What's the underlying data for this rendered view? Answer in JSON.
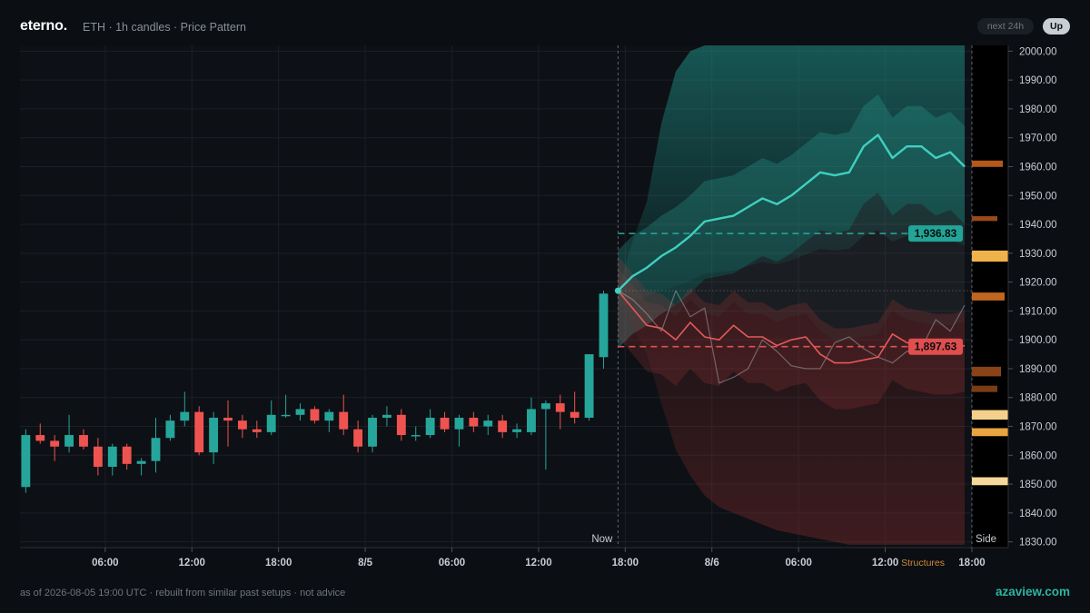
{
  "header": {
    "brand": "eterno.",
    "subtitle": "ETH · 1h candles · Price Pattern",
    "horizon_badge": "next 24h",
    "direction_badge": "Up"
  },
  "footer": {
    "note": "as of 2026-08-05 19:00 UTC · rebuilt from similar past setups · not advice",
    "site": "azaview.com"
  },
  "colors": {
    "up": "#26a69a",
    "down": "#ef5350",
    "background": "#0b0e12",
    "grid": "#1b2027",
    "bull_path": "#3fd0c0",
    "bear_path": "#e45a5a"
  },
  "chart_data": {
    "type": "candlestick",
    "title": "",
    "ylim": [
      1828,
      2002
    ],
    "yticks": [
      1830,
      1840,
      1850,
      1860,
      1870,
      1880,
      1890,
      1900,
      1910,
      1920,
      1930,
      1940,
      1950,
      1960,
      1970,
      1980,
      1990,
      2000
    ],
    "ytick_labels": [
      "1830.00",
      "1840.00",
      "1850.00",
      "1860.00",
      "1870.00",
      "1880.00",
      "1890.00",
      "1900.00",
      "1910.00",
      "1920.00",
      "1930.00",
      "1940.00",
      "1950.00",
      "1960.00",
      "1970.00",
      "1980.00",
      "1990.00",
      "2000.00"
    ],
    "xlim": [
      -0.4,
      65.5
    ],
    "x_ticks": [
      {
        "i": 5.5,
        "label": "06:00"
      },
      {
        "i": 11.5,
        "label": "12:00"
      },
      {
        "i": 17.5,
        "label": "18:00"
      },
      {
        "i": 23.5,
        "label": "8/5"
      },
      {
        "i": 29.5,
        "label": "06:00"
      },
      {
        "i": 35.5,
        "label": "12:00"
      },
      {
        "i": 41.5,
        "label": "18:00"
      },
      {
        "i": 47.5,
        "label": "8/6"
      },
      {
        "i": 53.5,
        "label": "06:00"
      },
      {
        "i": 59.5,
        "label": "12:00"
      },
      {
        "i": 65.5,
        "label": "18:00"
      }
    ],
    "candles": [
      {
        "o": 1849,
        "h": 1869,
        "l": 1847,
        "c": 1867
      },
      {
        "o": 1867,
        "h": 1871,
        "l": 1864,
        "c": 1865
      },
      {
        "o": 1865,
        "h": 1867,
        "l": 1858,
        "c": 1863
      },
      {
        "o": 1863,
        "h": 1874,
        "l": 1861,
        "c": 1867
      },
      {
        "o": 1867,
        "h": 1869,
        "l": 1862,
        "c": 1863
      },
      {
        "o": 1863,
        "h": 1866,
        "l": 1853,
        "c": 1856
      },
      {
        "o": 1856,
        "h": 1864,
        "l": 1853,
        "c": 1863
      },
      {
        "o": 1863,
        "h": 1864,
        "l": 1855,
        "c": 1857
      },
      {
        "o": 1857,
        "h": 1859,
        "l": 1853,
        "c": 1858
      },
      {
        "o": 1858,
        "h": 1873,
        "l": 1854,
        "c": 1866
      },
      {
        "o": 1866,
        "h": 1874,
        "l": 1865,
        "c": 1872
      },
      {
        "o": 1872,
        "h": 1882,
        "l": 1870,
        "c": 1875
      },
      {
        "o": 1875,
        "h": 1877,
        "l": 1860,
        "c": 1861
      },
      {
        "o": 1861,
        "h": 1875,
        "l": 1857,
        "c": 1873
      },
      {
        "o": 1873,
        "h": 1879,
        "l": 1863,
        "c": 1872
      },
      {
        "o": 1872,
        "h": 1874,
        "l": 1866,
        "c": 1869
      },
      {
        "o": 1869,
        "h": 1872,
        "l": 1866,
        "c": 1868
      },
      {
        "o": 1868,
        "h": 1879,
        "l": 1867,
        "c": 1874
      },
      {
        "o": 1874,
        "h": 1881,
        "l": 1873,
        "c": 1874
      },
      {
        "o": 1874,
        "h": 1878,
        "l": 1872,
        "c": 1876
      },
      {
        "o": 1876,
        "h": 1877,
        "l": 1871,
        "c": 1872
      },
      {
        "o": 1872,
        "h": 1876,
        "l": 1868,
        "c": 1875
      },
      {
        "o": 1875,
        "h": 1881,
        "l": 1867,
        "c": 1869
      },
      {
        "o": 1869,
        "h": 1872,
        "l": 1861,
        "c": 1863
      },
      {
        "o": 1863,
        "h": 1874,
        "l": 1861,
        "c": 1873
      },
      {
        "o": 1873,
        "h": 1877,
        "l": 1870,
        "c": 1874
      },
      {
        "o": 1874,
        "h": 1876,
        "l": 1865,
        "c": 1867
      },
      {
        "o": 1867,
        "h": 1870,
        "l": 1865,
        "c": 1867
      },
      {
        "o": 1867,
        "h": 1876,
        "l": 1866,
        "c": 1873
      },
      {
        "o": 1873,
        "h": 1875,
        "l": 1868,
        "c": 1869
      },
      {
        "o": 1869,
        "h": 1874,
        "l": 1863,
        "c": 1873
      },
      {
        "o": 1873,
        "h": 1875,
        "l": 1868,
        "c": 1870
      },
      {
        "o": 1870,
        "h": 1874,
        "l": 1867,
        "c": 1872
      },
      {
        "o": 1872,
        "h": 1874,
        "l": 1866,
        "c": 1868
      },
      {
        "o": 1868,
        "h": 1871,
        "l": 1866,
        "c": 1869
      },
      {
        "o": 1868,
        "h": 1880,
        "l": 1867,
        "c": 1876
      },
      {
        "o": 1876,
        "h": 1879,
        "l": 1855,
        "c": 1878
      },
      {
        "o": 1878,
        "h": 1881,
        "l": 1869,
        "c": 1875
      },
      {
        "o": 1875,
        "h": 1882,
        "l": 1871,
        "c": 1873
      },
      {
        "o": 1873,
        "h": 1895,
        "l": 1872,
        "c": 1895
      },
      {
        "o": 1894,
        "h": 1917,
        "l": 1890,
        "c": 1916
      }
    ],
    "now_index": 41,
    "now_label": "Now",
    "current_price": 1917,
    "levels": [
      {
        "value": 1936.83,
        "label": "1,936.83",
        "kind": "up"
      },
      {
        "value": 1897.63,
        "label": "1,897.63",
        "kind": "down"
      }
    ],
    "bull_path": [
      1917,
      1922,
      1925,
      1929,
      1932,
      1936,
      1941,
      1942,
      1943,
      1946,
      1949,
      1947,
      1950,
      1954,
      1958,
      1957,
      1958,
      1967,
      1971,
      1963,
      1967,
      1967,
      1963,
      1965,
      1960
    ],
    "bear_path": [
      1917,
      1911,
      1905,
      1904,
      1900,
      1906,
      1901,
      1900,
      1905,
      1901,
      1901,
      1898,
      1900,
      1901,
      1895,
      1892,
      1892,
      1893,
      1894,
      1902,
      1899,
      1898,
      1897,
      1897,
      1898
    ],
    "ghost_path": [
      1917,
      1914,
      1909,
      1903,
      1917,
      1908,
      1911,
      1885,
      1887,
      1890,
      1900,
      1896,
      1891,
      1890,
      1890,
      1899,
      1901,
      1897,
      1894,
      1892,
      1896,
      1897,
      1907,
      1903,
      1912
    ],
    "upper_band": [
      1917,
      1934,
      1948,
      1975,
      1993,
      2000,
      2002,
      2002,
      2002,
      2002,
      2002,
      2002,
      2002,
      2002,
      2002,
      2002,
      2002,
      2002,
      2002,
      2002,
      2002,
      2002,
      2002,
      2002,
      2002
    ],
    "lower_band": [
      1917,
      1905,
      1895,
      1878,
      1862,
      1853,
      1846,
      1842,
      1840,
      1838,
      1836,
      1834,
      1833,
      1832,
      1831,
      1830,
      1829,
      1829,
      1829,
      1829,
      1829,
      1829,
      1829,
      1829,
      1829
    ],
    "side_label": "Side",
    "structures_label": "Structures",
    "volume_profile": [
      {
        "y": 1961,
        "w": 0.85,
        "h": 4,
        "color": "#b4581c"
      },
      {
        "y": 1942,
        "w": 0.7,
        "h": 3,
        "color": "#9a4a18"
      },
      {
        "y": 1929,
        "w": 1.0,
        "h": 7,
        "color": "#f0b24a"
      },
      {
        "y": 1915,
        "w": 0.9,
        "h": 5,
        "color": "#c0661f"
      },
      {
        "y": 1889,
        "w": 0.8,
        "h": 6,
        "color": "#8a4318"
      },
      {
        "y": 1883,
        "w": 0.7,
        "h": 4,
        "color": "#7a3b15"
      },
      {
        "y": 1874,
        "w": 1.0,
        "h": 6,
        "color": "#f4d08a"
      },
      {
        "y": 1868,
        "w": 1.0,
        "h": 5,
        "color": "#e8a440"
      },
      {
        "y": 1851,
        "w": 1.0,
        "h": 5,
        "color": "#f6d79a"
      }
    ]
  }
}
